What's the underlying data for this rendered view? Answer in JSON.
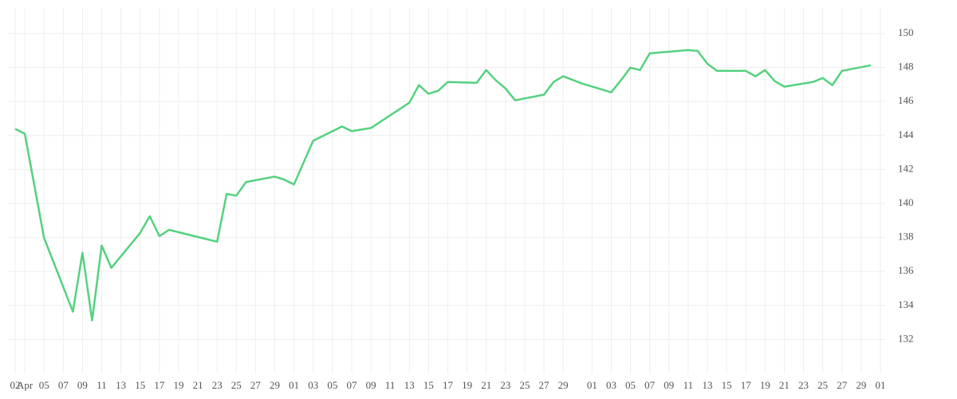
{
  "chart_data": {
    "type": "line",
    "x": [
      0,
      1,
      3,
      6,
      7,
      8,
      9,
      10,
      13,
      14,
      15,
      16,
      21,
      22,
      23,
      24,
      27,
      28,
      29,
      31,
      34,
      35,
      37,
      41,
      42,
      43,
      44,
      45,
      48,
      49,
      50,
      51,
      52,
      55,
      56,
      57,
      59,
      62,
      63,
      64,
      65,
      66,
      70,
      71,
      72,
      73,
      76,
      77,
      78,
      79,
      80,
      83,
      84,
      85,
      86,
      89
    ],
    "series": [
      {
        "color": "#55d17f",
        "values": [
          144.39,
          144.1,
          137.98,
          133.64,
          137.1,
          133.12,
          137.52,
          136.21,
          138.27,
          139.25,
          138.08,
          138.45,
          137.75,
          140.56,
          140.46,
          141.26,
          141.58,
          141.4,
          141.12,
          143.69,
          144.53,
          144.25,
          144.44,
          145.93,
          146.96,
          146.45,
          146.63,
          147.15,
          147.1,
          147.85,
          147.24,
          146.77,
          146.07,
          146.4,
          147.15,
          147.48,
          147.05,
          146.54,
          147.24,
          147.99,
          147.85,
          148.83,
          149.02,
          148.97,
          148.22,
          147.8,
          147.8,
          147.48,
          147.85,
          147.2,
          146.87,
          147.15,
          147.38,
          146.96,
          147.8,
          148.13
        ]
      }
    ],
    "xlim": [
      -0.75,
      90.5
    ],
    "xticks": [
      {
        "value": 0,
        "label": "02"
      },
      {
        "value": 1,
        "label": "Apr"
      },
      {
        "value": 3,
        "label": "05"
      },
      {
        "value": 5,
        "label": "07"
      },
      {
        "value": 7,
        "label": "09"
      },
      {
        "value": 9,
        "label": "11"
      },
      {
        "value": 11,
        "label": "13"
      },
      {
        "value": 13,
        "label": "15"
      },
      {
        "value": 15,
        "label": "17"
      },
      {
        "value": 17,
        "label": "19"
      },
      {
        "value": 19,
        "label": "21"
      },
      {
        "value": 21,
        "label": "23"
      },
      {
        "value": 23,
        "label": "25"
      },
      {
        "value": 25,
        "label": "27"
      },
      {
        "value": 27,
        "label": "29"
      },
      {
        "value": 29,
        "label": "01"
      },
      {
        "value": 31,
        "label": "03"
      },
      {
        "value": 33,
        "label": "05"
      },
      {
        "value": 35,
        "label": "07"
      },
      {
        "value": 37,
        "label": "09"
      },
      {
        "value": 39,
        "label": "11"
      },
      {
        "value": 41,
        "label": "13"
      },
      {
        "value": 43,
        "label": "15"
      },
      {
        "value": 45,
        "label": "17"
      },
      {
        "value": 47,
        "label": "19"
      },
      {
        "value": 49,
        "label": "21"
      },
      {
        "value": 51,
        "label": "23"
      },
      {
        "value": 53,
        "label": "25"
      },
      {
        "value": 55,
        "label": "27"
      },
      {
        "value": 57,
        "label": "29"
      },
      {
        "value": 60,
        "label": "01"
      },
      {
        "value": 62,
        "label": "03"
      },
      {
        "value": 64,
        "label": "05"
      },
      {
        "value": 66,
        "label": "07"
      },
      {
        "value": 68,
        "label": "09"
      },
      {
        "value": 70,
        "label": "11"
      },
      {
        "value": 72,
        "label": "13"
      },
      {
        "value": 74,
        "label": "15"
      },
      {
        "value": 76,
        "label": "17"
      },
      {
        "value": 78,
        "label": "19"
      },
      {
        "value": 80,
        "label": "21"
      },
      {
        "value": 82,
        "label": "23"
      },
      {
        "value": 84,
        "label": "25"
      },
      {
        "value": 86,
        "label": "27"
      },
      {
        "value": 88,
        "label": "29"
      },
      {
        "value": 90,
        "label": "01"
      }
    ],
    "ylim": [
      130,
      151.5
    ],
    "yticks": [
      132,
      134,
      136,
      138,
      140,
      142,
      144,
      146,
      148,
      150
    ],
    "grid": true
  }
}
